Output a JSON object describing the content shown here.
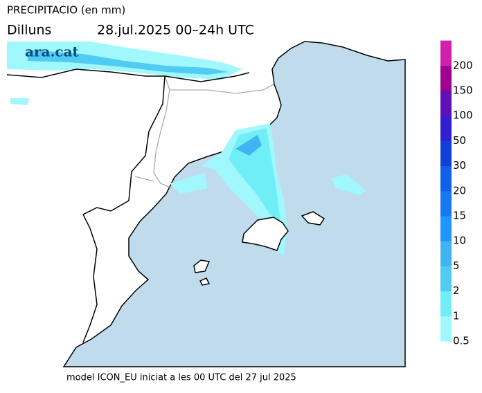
{
  "header": {
    "title": "PRECIPITACIO (en mm)",
    "day": "Dilluns",
    "period": "28.jul.2025 00–24h UTC"
  },
  "watermark": "ara.cat",
  "legend": {
    "levels": [
      0.5,
      1,
      2,
      5,
      10,
      15,
      20,
      30,
      50,
      100,
      150,
      200
    ],
    "colors": [
      "#a0f8fc",
      "#70eef8",
      "#50ccf2",
      "#40b4f2",
      "#1e96ff",
      "#1878f2",
      "#1060e8",
      "#1040d8",
      "#3020d0",
      "#6010b8",
      "#a00090",
      "#d020b0"
    ]
  },
  "footer": "model ICON_EU iniciat a les 00 UTC del 27 jul 2025"
}
